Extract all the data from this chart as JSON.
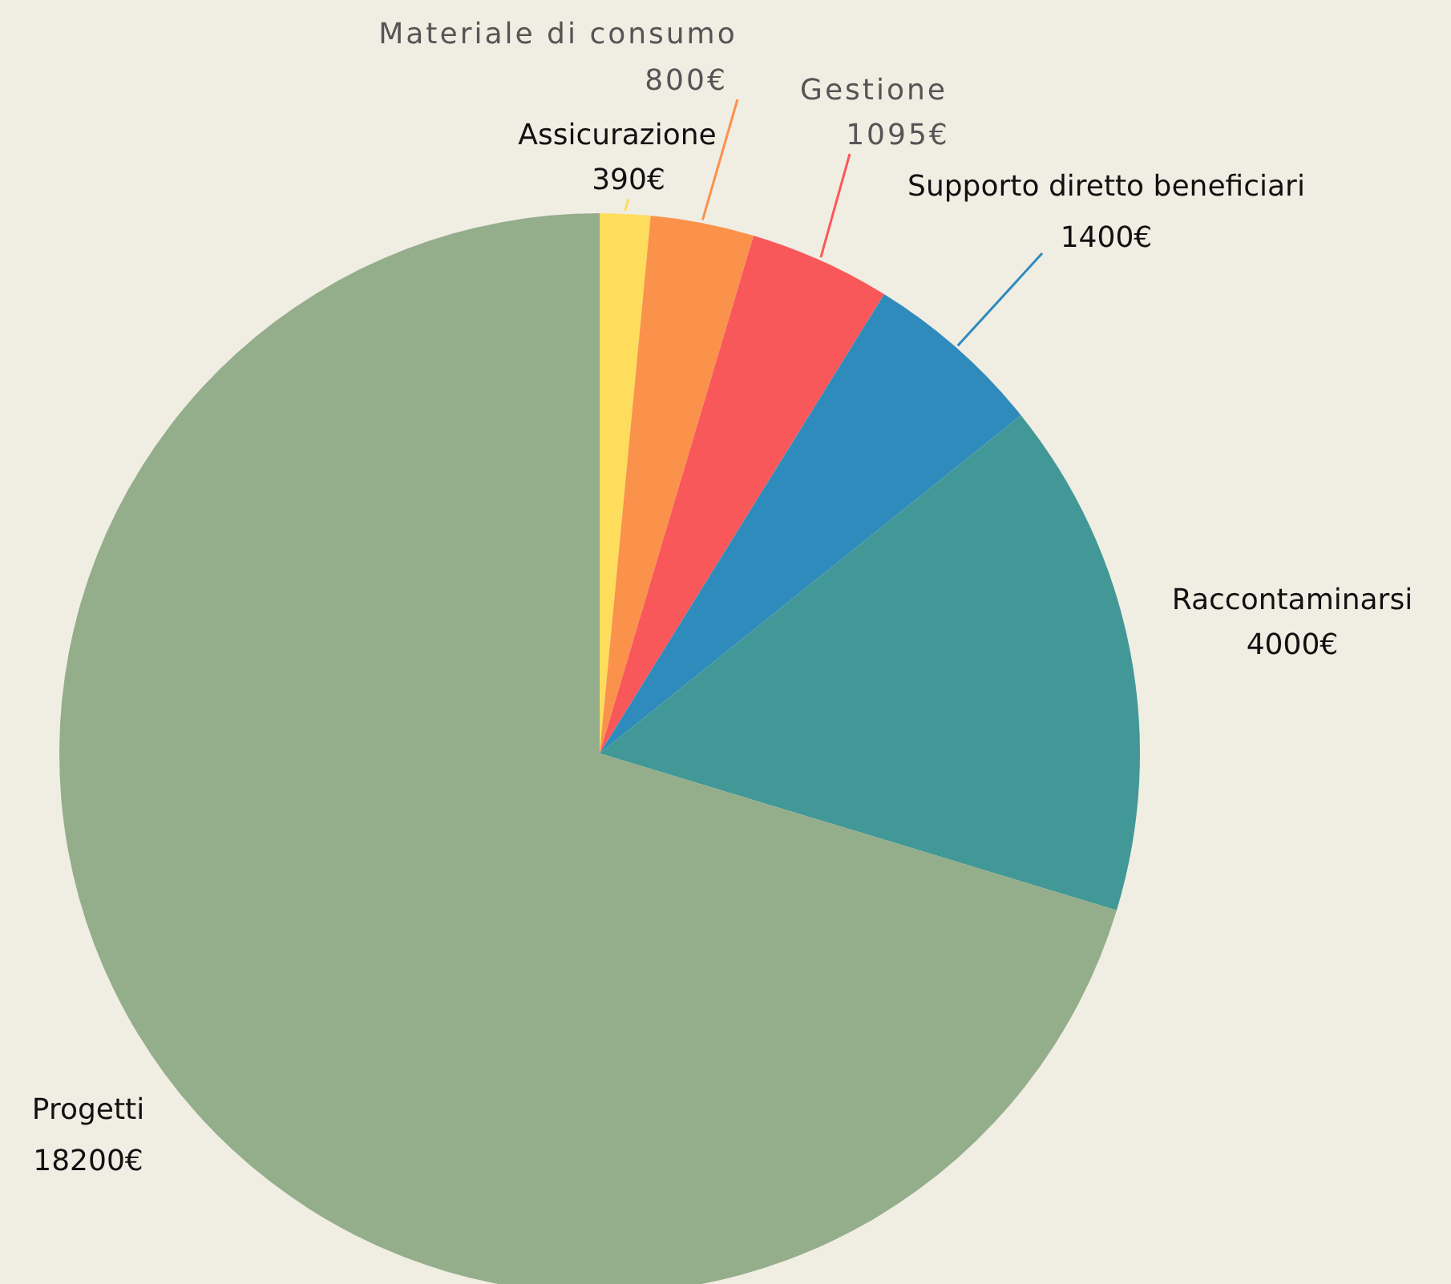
{
  "chart_data": {
    "type": "pie",
    "categories": [
      "Assicurazione",
      "Materiale di consumo",
      "Gestione",
      "Supporto diretto beneficiari",
      "Raccontaminarsi",
      "Progetti"
    ],
    "values": [
      390,
      800,
      1095,
      1400,
      4000,
      18200
    ],
    "value_labels": [
      "390€",
      "800€",
      "1095€",
      "1400€",
      "4000€",
      "18200€"
    ],
    "colors": [
      "#fedd5d",
      "#fb924b",
      "#f9585a",
      "#2e8bbc",
      "#429896",
      "#94ad8a"
    ],
    "legend": false
  }
}
